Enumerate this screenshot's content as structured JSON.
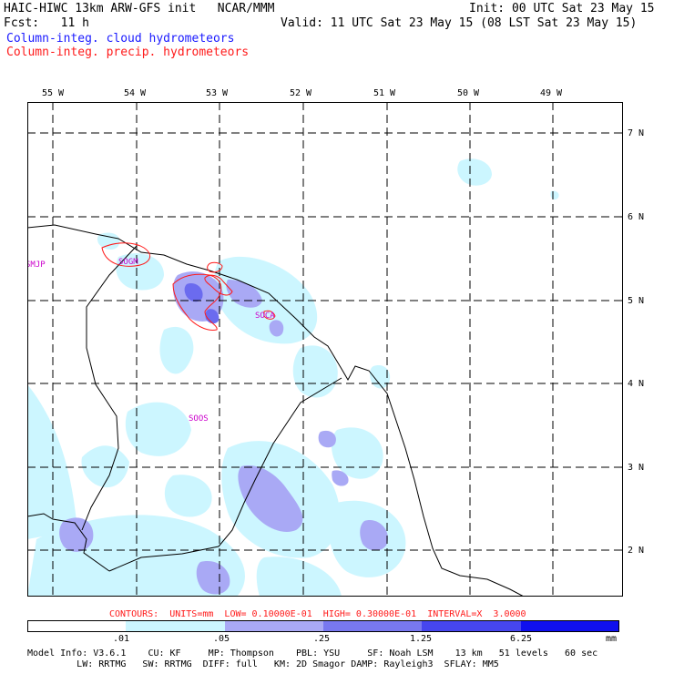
{
  "header": {
    "title": "HAIC-HIWC 13km ARW-GFS init   NCAR/MMM",
    "init": "Init: 00 UTC Sat 23 May 15",
    "fcst": "Fcst:   11 h",
    "valid": "Valid: 11 UTC Sat 23 May 15 (08 LST Sat 23 May 15)",
    "legend_cloud": "Column-integ. cloud hydrometeors",
    "legend_precip": "Column-integ. precip. hydrometeors"
  },
  "map": {
    "lon_labels": [
      "55 W",
      "54 W",
      "53 W",
      "52 W",
      "51 W",
      "50 W",
      "49 W"
    ],
    "lat_labels": [
      "7 N",
      "6 N",
      "5 N",
      "4 N",
      "3 N",
      "2 N"
    ],
    "stations": [
      "SMJP",
      "SOGM",
      "SOCA",
      "SOOS"
    ],
    "colors": {
      "light": "#ccf6ff",
      "mid": "#a9a9f5",
      "dark": "#6b6bef",
      "contour": "#ff1a1a",
      "station": "#cc00cc"
    }
  },
  "contours_caption": "CONTOURS:  UNITS=mm  LOW= 0.10000E-01  HIGH= 0.30000E-01  INTERVAL=X  3.0000",
  "colorbar": {
    "labels": [
      ".01",
      ".05",
      ".25",
      "1.25",
      "6.25"
    ],
    "unit": "mm",
    "colors": [
      "#ffffff",
      "#ccf6ff",
      "#a9a9f5",
      "#7878f0",
      "#4646ee",
      "#1010ee"
    ]
  },
  "footer": {
    "line1": "Model Info: V3.6.1    CU: KF     MP: Thompson    PBL: YSU     SF: Noah LSM    13 km   51 levels   60 sec",
    "line2": "         LW: RRTMG   SW: RRTMG  DIFF: full   KM: 2D Smagor DAMP: Rayleigh3  SFLAY: MM5"
  }
}
